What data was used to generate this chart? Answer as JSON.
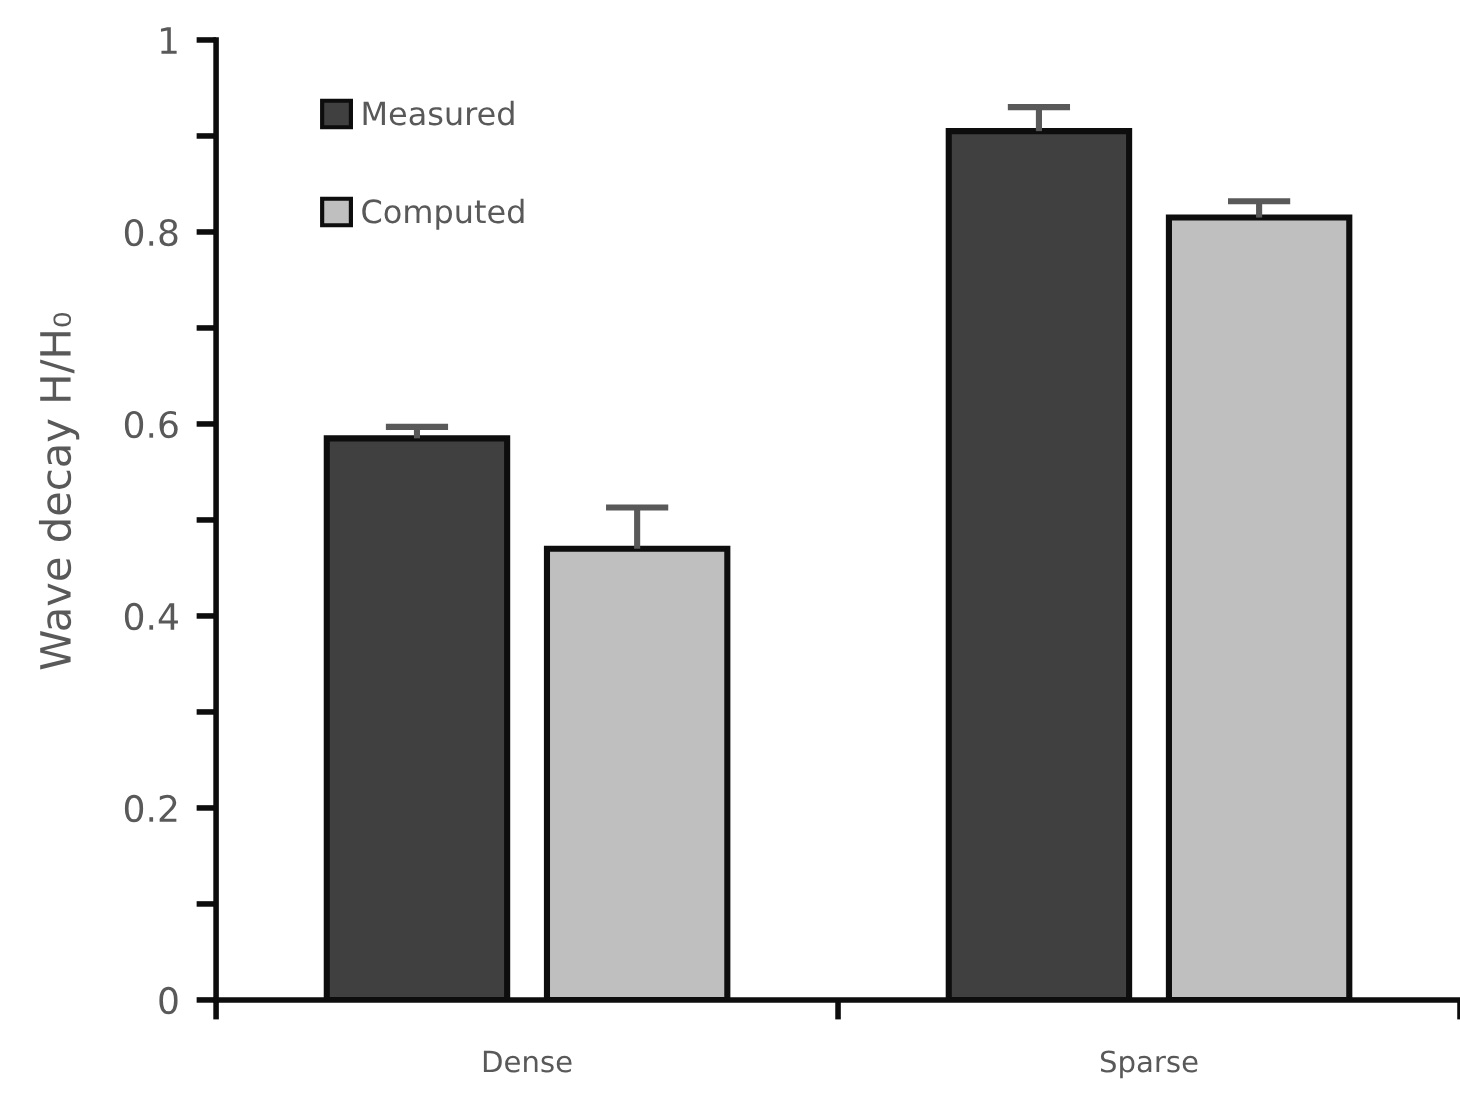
{
  "chart_data": {
    "type": "bar",
    "ylabel": "Wave decay H/H₀",
    "categories": [
      "Dense",
      "Sparse"
    ],
    "series": [
      {
        "name": "Measured",
        "color": "#404040",
        "values": [
          0.585,
          0.905
        ],
        "errors": [
          [
            0.585,
            0.597
          ],
          [
            0.905,
            0.93
          ]
        ]
      },
      {
        "name": "Computed",
        "color": "#bfbfbf",
        "values": [
          0.47,
          0.815
        ],
        "errors": [
          [
            0.47,
            0.513
          ],
          [
            0.815,
            0.832
          ]
        ]
      }
    ],
    "ylim": [
      0,
      1
    ],
    "yticks": [
      0,
      {
        "value": 0.1,
        "label": null
      },
      0.2,
      {
        "value": 0.3,
        "label": null
      },
      0.4,
      {
        "value": 0.5,
        "label": null
      },
      0.6,
      {
        "value": 0.7,
        "label": null
      },
      0.8,
      {
        "value": 0.9,
        "label": null
      },
      1
    ],
    "grid": false,
    "legend": "top left"
  }
}
